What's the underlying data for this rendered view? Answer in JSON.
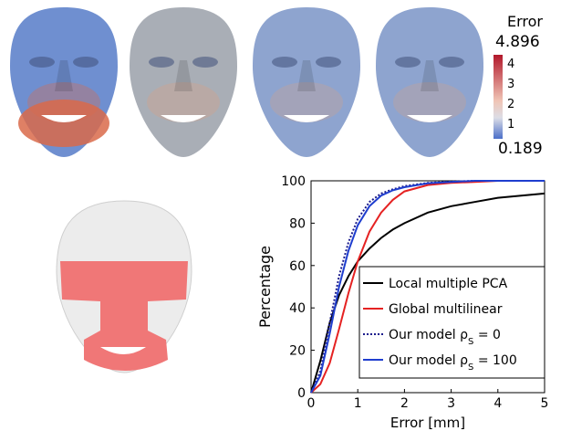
{
  "colorbar": {
    "title": "Error",
    "max_label": "4.896",
    "min_label": "0.189",
    "ticks": [
      "4",
      "3",
      "2",
      "1"
    ],
    "low_color": "#4a6fc9",
    "high_color": "#b2182b"
  },
  "faces": [
    {
      "name": "face-local-multiple-pca",
      "tint": "#6f8fd0",
      "warm": "#d96a4a"
    },
    {
      "name": "face-global-multilinear",
      "tint": "#a9aeb6",
      "warm": "#d8a088"
    },
    {
      "name": "face-our-model-rho-0",
      "tint": "#8ea4cf",
      "warm": "#caa38f"
    },
    {
      "name": "face-our-model-rho-100",
      "tint": "#8ea4cf",
      "warm": "#caa38f"
    }
  ],
  "region_face": {
    "mask_color": "#f07777",
    "base_color": "#ececec"
  },
  "chart_data": {
    "type": "line",
    "xlabel": "Error [mm]",
    "ylabel": "Percentage",
    "xlim": [
      0,
      5
    ],
    "ylim": [
      0,
      100
    ],
    "xticks": [
      "0",
      "1",
      "2",
      "3",
      "4",
      "5"
    ],
    "yticks": [
      "0",
      "20",
      "40",
      "60",
      "80",
      "100"
    ],
    "legend_position": "lower-right",
    "series": [
      {
        "name": "Local multiple PCA",
        "sub": "",
        "suffix": "",
        "color": "#000000",
        "dash": false,
        "x": [
          0,
          0.2,
          0.4,
          0.6,
          0.8,
          1.0,
          1.25,
          1.5,
          1.75,
          2.0,
          2.5,
          3.0,
          3.5,
          4.0,
          4.5,
          5.0
        ],
        "y": [
          0,
          15,
          33,
          46,
          55,
          62,
          68,
          73,
          77,
          80,
          85,
          88,
          90,
          92,
          93,
          94
        ]
      },
      {
        "name": "Global multilinear",
        "sub": "",
        "suffix": "",
        "color": "#e52222",
        "dash": false,
        "x": [
          0,
          0.2,
          0.4,
          0.6,
          0.8,
          1.0,
          1.25,
          1.5,
          1.75,
          2.0,
          2.5,
          3.0,
          3.5,
          4.0,
          5.0
        ],
        "y": [
          0,
          4,
          14,
          30,
          47,
          62,
          76,
          85,
          91,
          95,
          98,
          99,
          99.5,
          100,
          100
        ]
      },
      {
        "name": "Our model ρ",
        "sub": "S",
        "suffix": " = 0",
        "color": "#1a1a8c",
        "dash": true,
        "x": [
          0,
          0.2,
          0.4,
          0.6,
          0.8,
          1.0,
          1.25,
          1.5,
          1.75,
          2.0,
          2.5,
          3.0,
          3.5,
          4.0,
          5.0
        ],
        "y": [
          0,
          10,
          33,
          55,
          71,
          82,
          90,
          94,
          96,
          97.5,
          99,
          99.6,
          100,
          100,
          100
        ]
      },
      {
        "name": "Our model ρ",
        "sub": "S",
        "suffix": " = 100",
        "color": "#1f3ecf",
        "dash": false,
        "x": [
          0,
          0.2,
          0.4,
          0.6,
          0.8,
          1.0,
          1.25,
          1.5,
          1.75,
          2.0,
          2.5,
          3.0,
          3.5,
          4.0,
          5.0
        ],
        "y": [
          0,
          8,
          28,
          50,
          67,
          79,
          88,
          93,
          95.5,
          97,
          98.8,
          99.5,
          100,
          100,
          100
        ]
      }
    ]
  }
}
